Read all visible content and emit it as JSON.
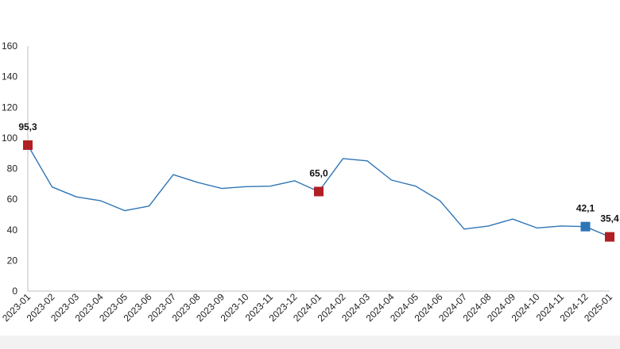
{
  "chart_data": {
    "type": "line",
    "title": "",
    "xlabel": "",
    "ylabel": "",
    "ylim": [
      0,
      160
    ],
    "yticks": [
      0,
      20,
      40,
      60,
      80,
      100,
      120,
      140,
      160
    ],
    "grid": false,
    "legend": "none",
    "x": [
      "2023-01",
      "2023-02",
      "2023-03",
      "2023-04",
      "2023-05",
      "2023-06",
      "2023-07",
      "2023-08",
      "2023-09",
      "2023-10",
      "2023-11",
      "2023-12",
      "2024-01",
      "2024-02",
      "2024-03",
      "2024-04",
      "2024-05",
      "2024-06",
      "2024-07",
      "2024-08",
      "2024-09",
      "2024-10",
      "2024-11",
      "2024-12",
      "2025-01"
    ],
    "series": [
      {
        "values": [
          95.3,
          68,
          61.5,
          59,
          52.5,
          55.5,
          76,
          71,
          67,
          68.2,
          68.5,
          72,
          65.0,
          86.5,
          85,
          72.5,
          68.5,
          59,
          40.5,
          42.5,
          47,
          41.2,
          42.5,
          42.1,
          35.4
        ],
        "color": "#2e75b6"
      }
    ],
    "highlighted_points": [
      {
        "index": 0,
        "label": "95,3",
        "color": "#b01f24"
      },
      {
        "index": 12,
        "label": "65,0",
        "color": "#b01f24"
      },
      {
        "index": 23,
        "label": "42,1",
        "color": "#2e75b6"
      },
      {
        "index": 24,
        "label": "35,4",
        "color": "#b01f24"
      }
    ],
    "axis_color": "#bfbfbf"
  }
}
